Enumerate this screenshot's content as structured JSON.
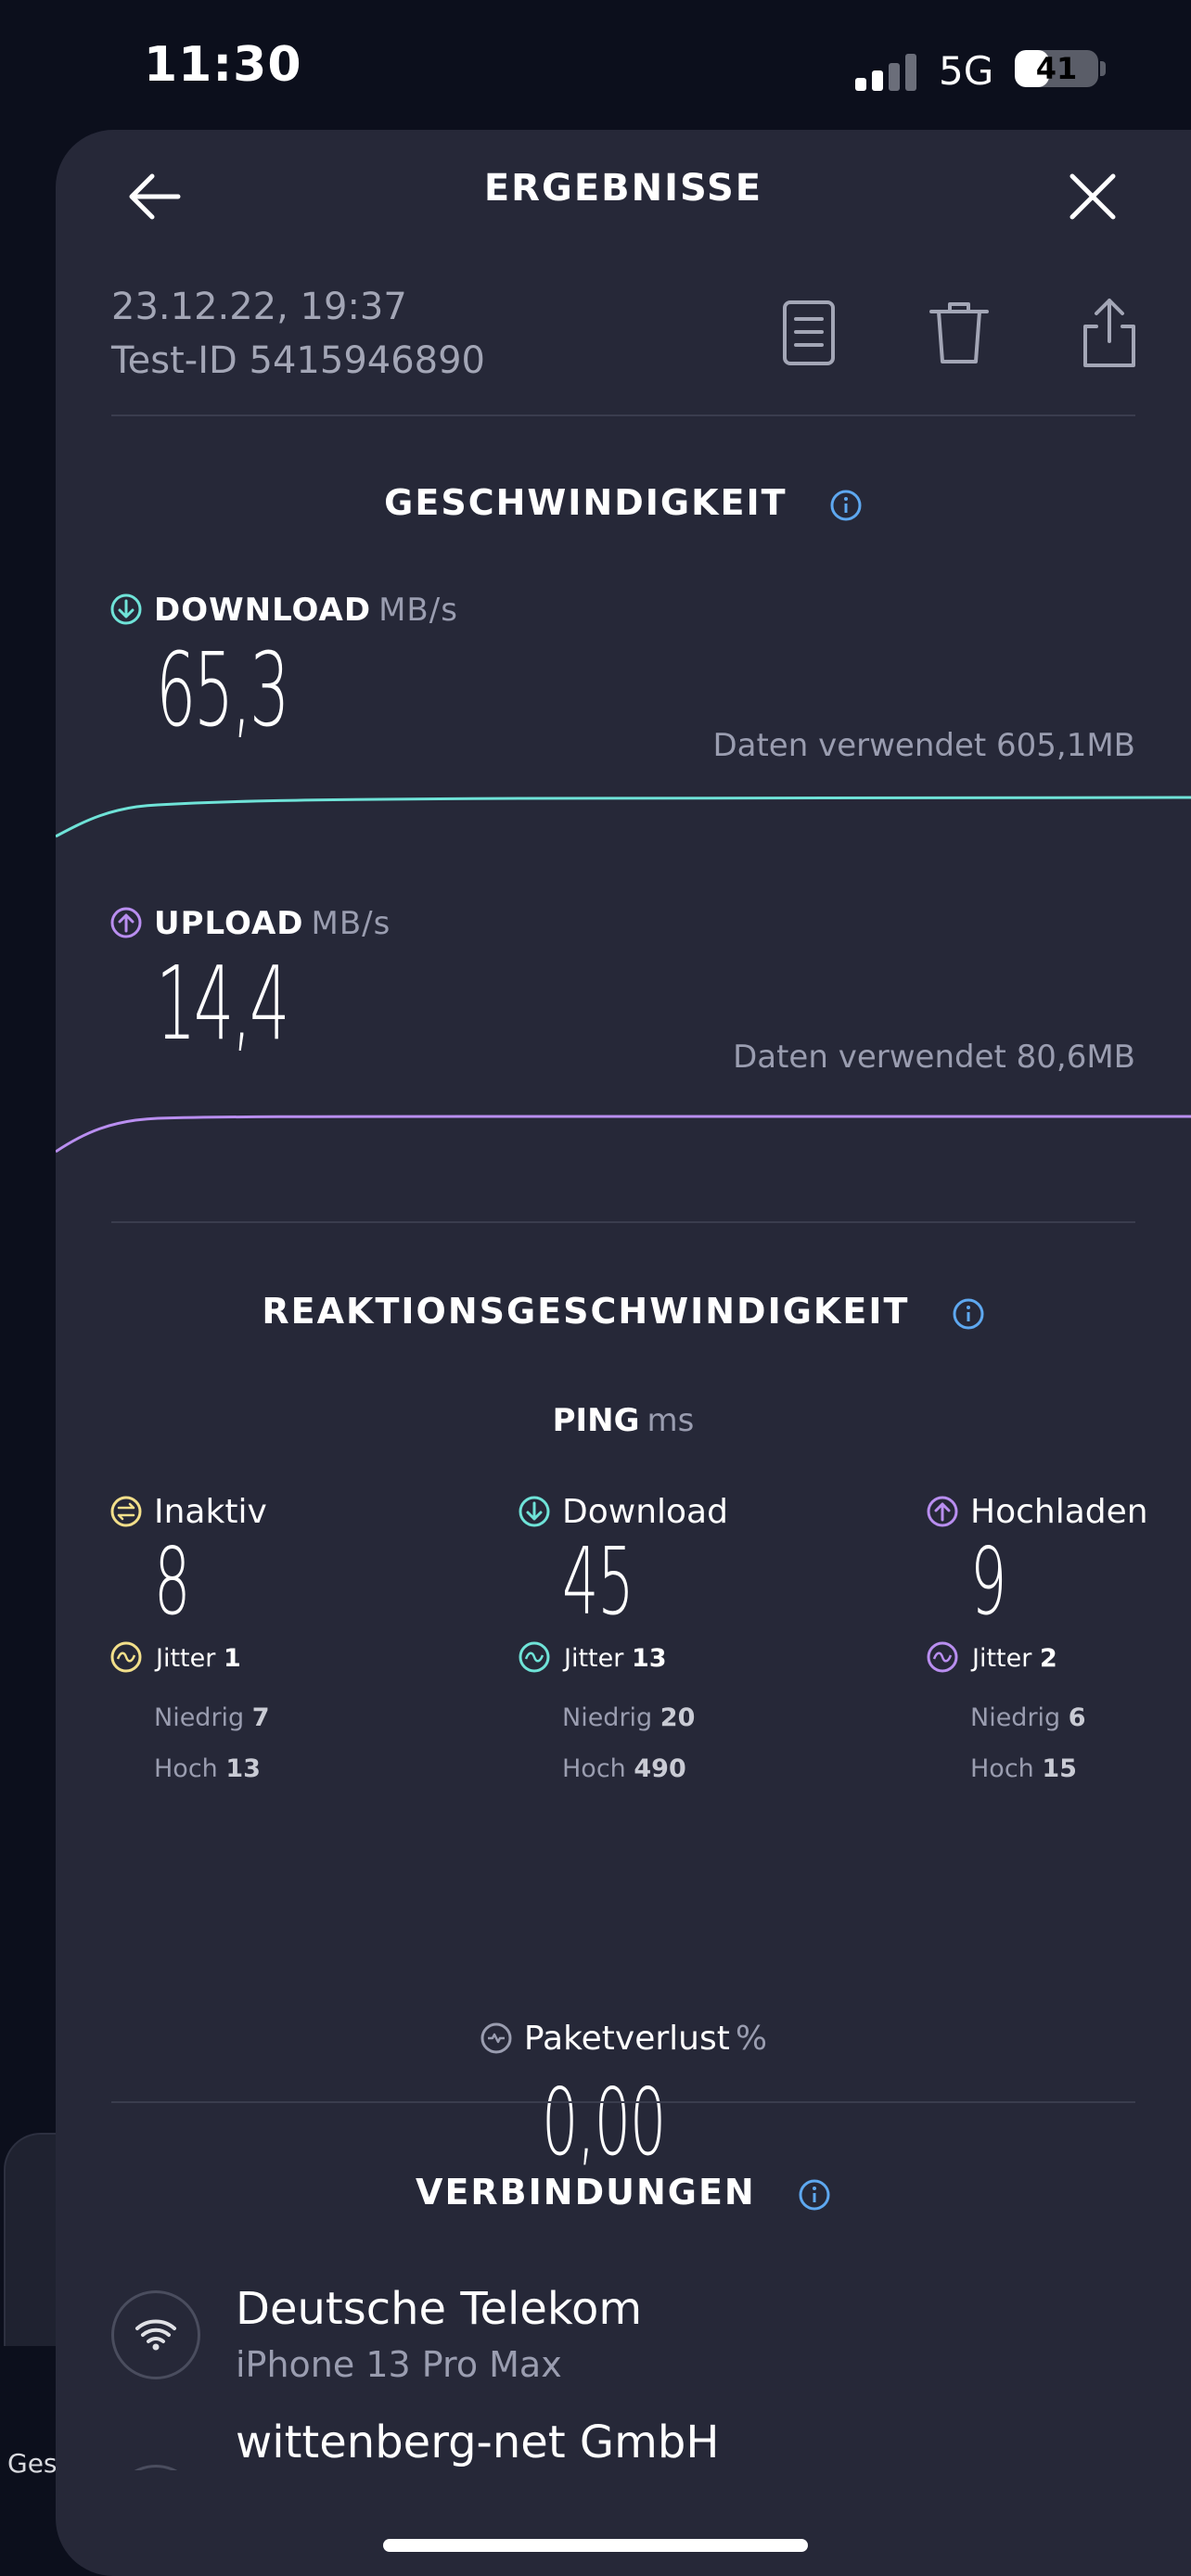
{
  "status_bar": {
    "time": "11:30",
    "network": "5G",
    "battery": "41",
    "battery_level": 0.41
  },
  "header": {
    "title": "ERGEBNISSE",
    "back_icon": "arrow-left-icon",
    "close_icon": "close-icon"
  },
  "meta": {
    "date": "23.12.22, 19:37",
    "test_id": "Test-ID 5415946890",
    "actions": [
      "document-icon",
      "trash-icon",
      "share-icon"
    ]
  },
  "speed": {
    "title": "GESCHWINDIGKEIT",
    "download": {
      "label": "DOWNLOAD",
      "unit": "MB/s",
      "value": "65,3",
      "data_used": "Daten verwendet 605,1MB",
      "color": "#6fe3d8"
    },
    "upload": {
      "label": "UPLOAD",
      "unit": "MB/s",
      "value": "14,4",
      "data_used": "Daten verwendet 80,6MB",
      "color": "#b98ef0"
    }
  },
  "responsiveness": {
    "title": "REAKTIONSGESCHWINDIGKEIT",
    "ping_label": "PING",
    "ping_unit": "ms",
    "columns": [
      {
        "label": "Inaktiv",
        "value": "8",
        "jitter_label": "Jitter",
        "jitter": "1",
        "low_label": "Niedrig",
        "low": "7",
        "high_label": "Hoch",
        "high": "13",
        "color": "#f2df8a"
      },
      {
        "label": "Download",
        "value": "45",
        "jitter_label": "Jitter",
        "jitter": "13",
        "low_label": "Niedrig",
        "low": "20",
        "high_label": "Hoch",
        "high": "490",
        "color": "#6fe3d8"
      },
      {
        "label": "Hochladen",
        "value": "9",
        "jitter_label": "Jitter",
        "jitter": "2",
        "low_label": "Niedrig",
        "low": "6",
        "high_label": "Hoch",
        "high": "15",
        "color": "#b98ef0"
      }
    ],
    "packet_loss_label": "Paketverlust",
    "packet_loss_unit": "%",
    "packet_loss": "0,00"
  },
  "connections": {
    "title": "VERBINDUNGEN",
    "items": [
      {
        "name": "Deutsche Telekom",
        "sub": "iPhone 13 Pro Max",
        "icon": "wifi-icon"
      },
      {
        "name": "wittenberg-net GmbH",
        "icon": "globe-icon"
      }
    ]
  },
  "background": {
    "peek_text": "Ges"
  },
  "colors": {
    "background": "#0c0f1c",
    "sheet": "#262838",
    "info": "#5ea8f0"
  }
}
